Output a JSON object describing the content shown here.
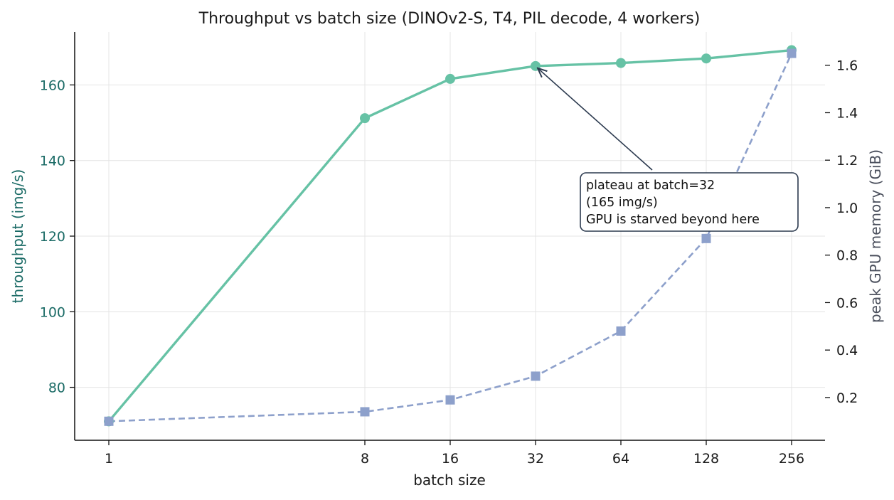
{
  "chart_data": {
    "type": "line",
    "title": "Throughput vs batch size (DINOv2-S, T4, PIL decode, 4 workers)",
    "xlabel": "batch size",
    "ylabel_left": "throughput (img/s)",
    "ylabel_right": "peak GPU memory (GiB)",
    "x_scale": "log2",
    "x": [
      1,
      8,
      16,
      32,
      64,
      128,
      256
    ],
    "x_tick_labels": [
      "1",
      "8",
      "16",
      "32",
      "64",
      "128",
      "256"
    ],
    "ylim_left": [
      66,
      174
    ],
    "ylim_right": [
      0.02,
      1.74
    ],
    "y_ticks_left": [
      80,
      100,
      120,
      140,
      160
    ],
    "y_ticks_right": [
      0.2,
      0.4,
      0.6,
      0.8,
      1.0,
      1.2,
      1.4,
      1.6
    ],
    "y_tick_labels_left": [
      "80",
      "100",
      "120",
      "140",
      "160"
    ],
    "y_tick_labels_right": [
      "0.2",
      "0.4",
      "0.6",
      "0.8",
      "1.0",
      "1.2",
      "1.4",
      "1.6"
    ],
    "grid": true,
    "series": [
      {
        "axis": "left",
        "color": "#66c2a5",
        "line_style": "solid",
        "marker": "circle",
        "values": [
          71,
          151.2,
          161.6,
          165.0,
          165.8,
          167.0,
          169.2
        ]
      },
      {
        "axis": "right",
        "color": "#8da0cb",
        "line_style": "dashed",
        "marker": "square",
        "values": [
          0.1,
          0.14,
          0.19,
          0.29,
          0.48,
          0.87,
          1.65
        ]
      }
    ],
    "annotation": {
      "lines": [
        "plateau at batch=32",
        "(165 img/s)",
        "GPU is starved beyond here"
      ],
      "target_x": 32,
      "target_y": 165.0
    },
    "colors": {
      "left_axis_label": "#1b6b66",
      "right_axis_label": "#4a4f5c",
      "annotation_border": "#2c3a4f"
    }
  }
}
